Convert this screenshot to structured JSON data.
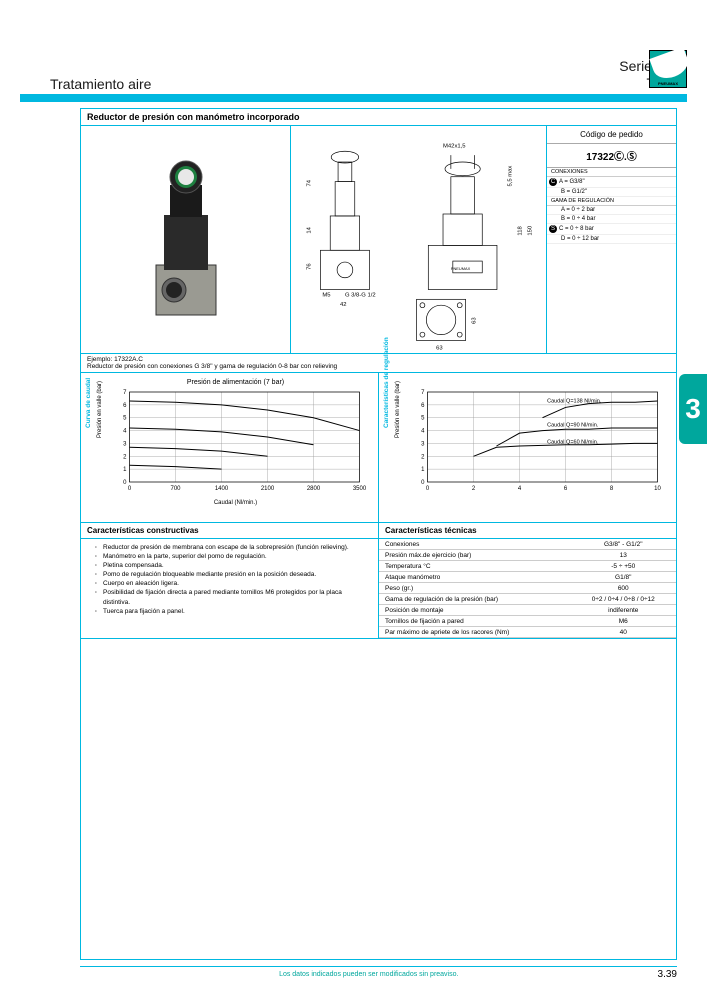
{
  "header": {
    "left": "Tratamiento aire",
    "right_line1": "Serie 1700",
    "right_line2": "Talla 3",
    "logo_label": "PNEUMAX"
  },
  "title": "Reductor de presión con manómetro incorporado",
  "order": {
    "title": "Código de pedido",
    "code": "17322Ⓒ.Ⓢ",
    "conexiones_label": "CONEXIONES",
    "conexiones": [
      "A = G3/8\"",
      "B = G1/2\""
    ],
    "conex_marker": "C",
    "gama_label": "GAMA DE REGULACIÓN",
    "gama": [
      "A = 0 ÷ 2 bar",
      "B = 0 ÷ 4 bar",
      "C = 0 ÷ 8 bar",
      "D = 0 ÷ 12 bar"
    ],
    "gama_marker": "S"
  },
  "drawing_labels": {
    "top": "M42x1,5",
    "h74": "74",
    "h14": "14",
    "h76": "76",
    "h55": "5,5 max",
    "h118": "118",
    "h150": "150",
    "m5": "M5",
    "port": "G 3/8-G 1/2",
    "w42": "42",
    "w63": "63",
    "h63": "63",
    "brand": "PNEUMAX"
  },
  "example": {
    "line1": "Ejemplo: 17322A.C",
    "line2": "Reductor de presión con conexiones G 3/8\" y gama de regulación 0-8 bar con relieving"
  },
  "chart1": {
    "side_label": "Curva de caudal",
    "title": "Presión de alimentación (7 bar)",
    "ylabel": "Presión en valle  (bar)",
    "xlabel": "Caudal (Nl/min.)",
    "xlim": [
      0,
      3500
    ],
    "xtick": [
      0,
      700,
      1400,
      2100,
      2800,
      3500
    ],
    "ylim": [
      0,
      7
    ],
    "ytick": [
      0,
      1,
      2,
      3,
      4,
      5,
      6,
      7
    ],
    "series": [
      [
        [
          0,
          6.3
        ],
        [
          700,
          6.2
        ],
        [
          1400,
          6.0
        ],
        [
          2100,
          5.6
        ],
        [
          2800,
          5.0
        ],
        [
          3500,
          4.0
        ]
      ],
      [
        [
          0,
          4.2
        ],
        [
          700,
          4.1
        ],
        [
          1400,
          3.9
        ],
        [
          2100,
          3.5
        ],
        [
          2800,
          2.9
        ]
      ],
      [
        [
          0,
          2.7
        ],
        [
          700,
          2.6
        ],
        [
          1400,
          2.4
        ],
        [
          2100,
          2.0
        ]
      ],
      [
        [
          0,
          1.3
        ],
        [
          700,
          1.2
        ],
        [
          1400,
          1.0
        ]
      ]
    ],
    "grid_color": "#999",
    "line_color": "#000"
  },
  "chart2": {
    "side_label": "Características de regulación",
    "ylabel": "Presión en valle (bar)",
    "xlim": [
      0,
      10
    ],
    "xtick": [
      0,
      2,
      4,
      6,
      8,
      10
    ],
    "ylim": [
      0,
      7
    ],
    "ytick": [
      0,
      1,
      2,
      3,
      4,
      5,
      6,
      7
    ],
    "series": [
      {
        "label": "Caudal Q=138 Nl/min.",
        "ly": 6.2,
        "pts": [
          [
            5,
            5.0
          ],
          [
            6,
            5.8
          ],
          [
            7,
            6.1
          ],
          [
            8,
            6.2
          ],
          [
            9,
            6.2
          ],
          [
            10,
            6.3
          ]
        ]
      },
      {
        "label": "Caudal Q=90 Nl/min.",
        "ly": 4.3,
        "pts": [
          [
            3,
            2.8
          ],
          [
            4,
            3.8
          ],
          [
            5,
            4.0
          ],
          [
            6,
            4.1
          ],
          [
            7,
            4.1
          ],
          [
            8,
            4.2
          ],
          [
            9,
            4.2
          ],
          [
            10,
            4.2
          ]
        ]
      },
      {
        "label": "Caudal Q=60 Nl/min.",
        "ly": 3.0,
        "pts": [
          [
            2,
            2.0
          ],
          [
            3,
            2.7
          ],
          [
            4,
            2.8
          ],
          [
            5,
            2.85
          ],
          [
            6,
            2.9
          ],
          [
            7,
            2.9
          ],
          [
            8,
            2.95
          ],
          [
            9,
            3.0
          ],
          [
            10,
            3.0
          ]
        ]
      }
    ],
    "grid_color": "#999",
    "line_color": "#000"
  },
  "constructive": {
    "title": "Características constructivas",
    "items": [
      "Reductor de presión de membrana con escape de la sobrepresión (función relieving).",
      "Manómetro en la parte, superior del pomo de regulación.",
      "Pletina compensada.",
      "Pomo de regulación bloqueable mediante presión en la posición deseada.",
      "Cuerpo en aleación ligera.",
      "Posibilidad de fijación directa a pared mediante tornillos M6 protegidos por la placa distintiva.",
      "Tuerca para fijación a panel."
    ]
  },
  "technical": {
    "title": "Características técnicas",
    "rows": [
      [
        "Conexiones",
        "G3/8\" - G1/2\""
      ],
      [
        "Presión máx.de ejercicio (bar)",
        "13"
      ],
      [
        "Temperatura °C",
        "-5 ÷  +50"
      ],
      [
        "Ataque manómetro",
        "G1/8\""
      ],
      [
        "Peso (gr.)",
        "600"
      ],
      [
        "Gama de regulación de la presión (bar)",
        "0÷2 / 0÷4 / 0÷8 /  0÷12"
      ],
      [
        "Posición de montaje",
        "indiferente"
      ],
      [
        "Tornillos de fijación a pared",
        "M6"
      ],
      [
        "Par máximo de apriete de los racores (Nm)",
        "40"
      ]
    ]
  },
  "side_tab": "3",
  "footer": {
    "text": "Los datos indicados pueden ser modificados sin preaviso.",
    "page": "3.39"
  }
}
